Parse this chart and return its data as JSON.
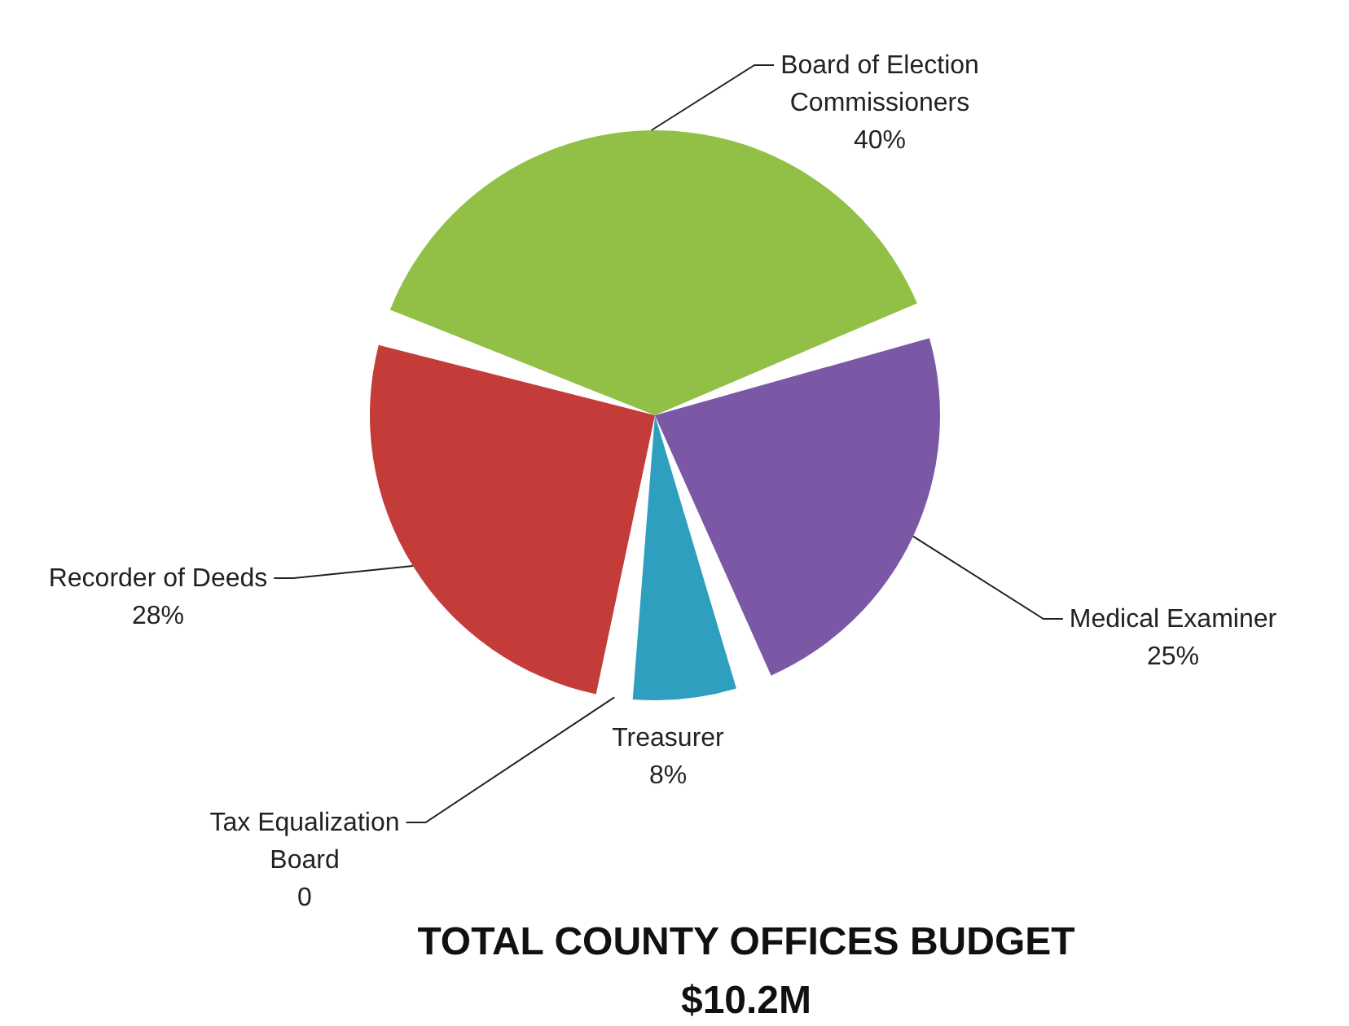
{
  "chart_data": {
    "type": "pie",
    "title": "TOTAL COUNTY OFFICES BUDGET",
    "subtitle": "$10.2M",
    "categories": [
      "Board of Election Commissioners",
      "Medical Examiner",
      "Treasurer",
      "Tax Equalization Board",
      "Recorder of Deeds"
    ],
    "values": [
      40,
      25,
      8,
      0,
      28
    ],
    "value_labels": [
      "40%",
      "25%",
      "8%",
      "0",
      "28%"
    ],
    "colors": [
      "#92bf45",
      "#7b58a6",
      "#2f9fbf",
      "#f79646",
      "#c43c3a"
    ]
  }
}
